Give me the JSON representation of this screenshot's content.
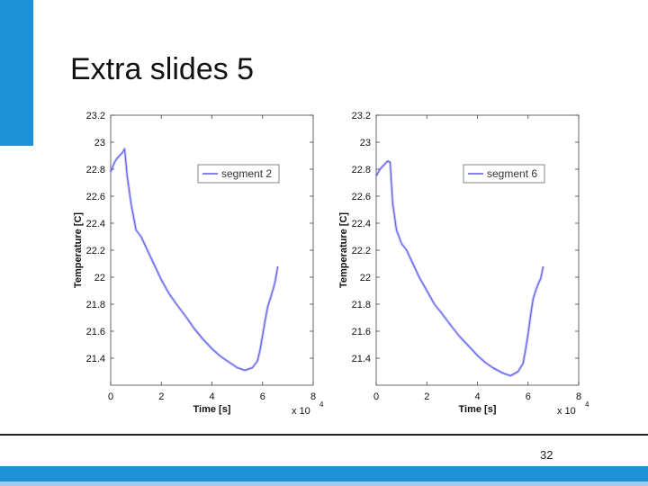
{
  "slide": {
    "title": "Extra slides 5",
    "page_number": "32"
  },
  "colors": {
    "accent": "#1e90d6",
    "accent_light": "#9fcbea",
    "series": "#5a5ae6"
  },
  "chart_data": [
    {
      "type": "line",
      "title": "",
      "xlabel": "Time [s]",
      "ylabel": "Temperature [C]",
      "x_multiplier_label": "x 10",
      "x_multiplier_exp": "4",
      "xlim": [
        0,
        8
      ],
      "ylim": [
        21.2,
        23.2
      ],
      "x_ticks": [
        "0",
        "2",
        "4",
        "6",
        "8"
      ],
      "y_ticks": [
        "21.4",
        "21.6",
        "21.8",
        "22",
        "22.2",
        "22.4",
        "22.6",
        "22.8",
        "23",
        "23.2"
      ],
      "grid": false,
      "legend_position": "top-right",
      "series": [
        {
          "name": "segment 2",
          "x": [
            0.0,
            0.15,
            0.25,
            0.35,
            0.45,
            0.55,
            0.65,
            0.8,
            1.0,
            1.2,
            1.4,
            1.7,
            2.0,
            2.3,
            2.6,
            3.0,
            3.3,
            3.6,
            4.0,
            4.3,
            4.6,
            5.0,
            5.3,
            5.6,
            5.8,
            5.9,
            6.0,
            6.1,
            6.2,
            6.3,
            6.4,
            6.5,
            6.6
          ],
          "y": [
            22.78,
            22.85,
            22.88,
            22.9,
            22.92,
            22.95,
            22.75,
            22.55,
            22.35,
            22.3,
            22.22,
            22.1,
            21.98,
            21.88,
            21.8,
            21.7,
            21.62,
            21.55,
            21.47,
            21.42,
            21.38,
            21.33,
            21.31,
            21.33,
            21.38,
            21.46,
            21.57,
            21.68,
            21.78,
            21.84,
            21.9,
            21.97,
            22.08
          ]
        }
      ]
    },
    {
      "type": "line",
      "title": "",
      "xlabel": "Time [s]",
      "ylabel": "Temperature [C]",
      "x_multiplier_label": "x 10",
      "x_multiplier_exp": "4",
      "xlim": [
        0,
        8
      ],
      "ylim": [
        21.2,
        23.2
      ],
      "x_ticks": [
        "0",
        "2",
        "4",
        "6",
        "8"
      ],
      "y_ticks": [
        "21.4",
        "21.6",
        "21.8",
        "22",
        "22.2",
        "22.4",
        "22.6",
        "22.8",
        "23",
        "23.2"
      ],
      "grid": false,
      "legend_position": "top-right",
      "series": [
        {
          "name": "segment 6",
          "x": [
            0.0,
            0.15,
            0.25,
            0.35,
            0.45,
            0.55,
            0.65,
            0.8,
            1.0,
            1.2,
            1.4,
            1.7,
            2.0,
            2.3,
            2.6,
            3.0,
            3.3,
            3.6,
            4.0,
            4.3,
            4.6,
            5.0,
            5.3,
            5.6,
            5.8,
            5.9,
            6.0,
            6.1,
            6.2,
            6.3,
            6.4,
            6.5,
            6.6
          ],
          "y": [
            22.75,
            22.8,
            22.82,
            22.84,
            22.86,
            22.85,
            22.55,
            22.35,
            22.25,
            22.2,
            22.12,
            22.0,
            21.9,
            21.8,
            21.73,
            21.63,
            21.56,
            21.5,
            21.42,
            21.37,
            21.33,
            21.29,
            21.27,
            21.3,
            21.36,
            21.46,
            21.58,
            21.72,
            21.84,
            21.9,
            21.95,
            21.99,
            22.08
          ]
        }
      ]
    }
  ]
}
